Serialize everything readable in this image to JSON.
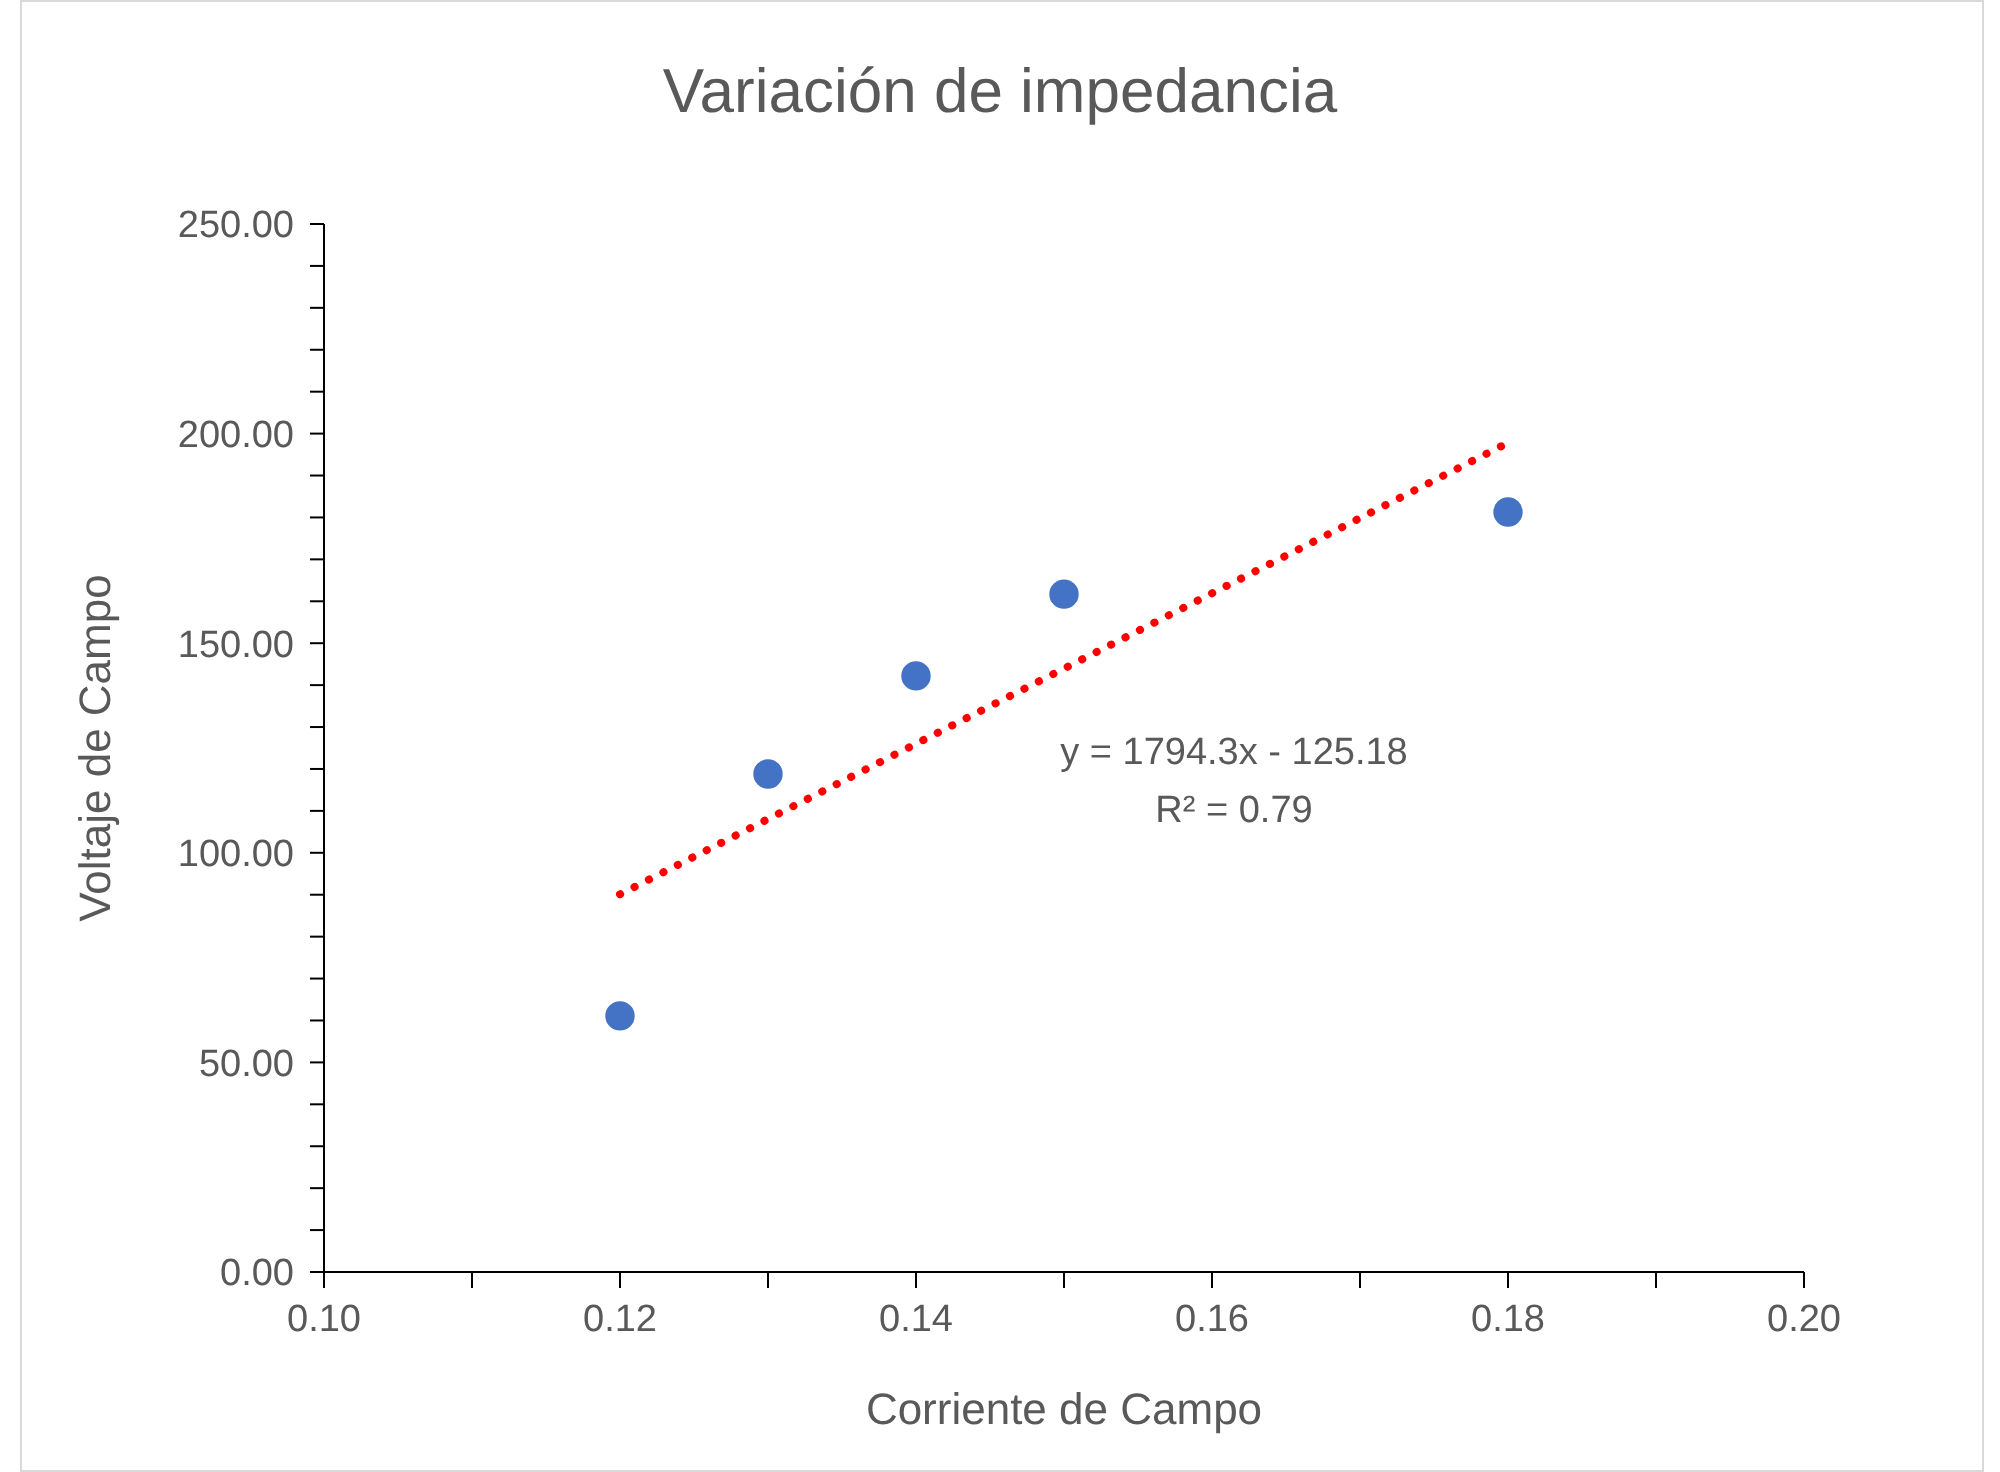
{
  "chart_data": {
    "type": "scatter",
    "title": "Variación de impedancia",
    "xlabel": "Corriente de Campo",
    "ylabel": "Voltaje de Campo",
    "xlim": [
      0.1,
      0.2
    ],
    "xticks": [
      {
        "value": 0.1,
        "label": "0.10"
      },
      {
        "value": 0.11,
        "label": null
      },
      0.12,
      {
        "value": 0.13,
        "label": null
      },
      0.14,
      {
        "value": 0.15,
        "label": null
      },
      0.16,
      {
        "value": 0.17,
        "label": null
      },
      0.18,
      {
        "value": 0.19,
        "label": null
      },
      {
        "value": 0.2,
        "label": "0.20"
      }
    ],
    "ylim": [
      0,
      250
    ],
    "yticks": [
      {
        "value": 0,
        "label": "0.00"
      },
      {
        "value": 10,
        "label": null
      },
      {
        "value": 20,
        "label": null
      },
      {
        "value": 30,
        "label": null
      },
      {
        "value": 40,
        "label": null
      },
      {
        "value": 50,
        "label": "50.00"
      },
      {
        "value": 60,
        "label": null
      },
      {
        "value": 70,
        "label": null
      },
      {
        "value": 80,
        "label": null
      },
      {
        "value": 90,
        "label": null
      },
      {
        "value": 100,
        "label": "100.00"
      },
      {
        "value": 110,
        "label": null
      },
      {
        "value": 120,
        "label": null
      },
      {
        "value": 130,
        "label": null
      },
      {
        "value": 140,
        "label": null
      },
      {
        "value": 150,
        "label": "150.00"
      },
      {
        "value": 160,
        "label": null
      },
      {
        "value": 170,
        "label": null
      },
      {
        "value": 180,
        "label": null
      },
      {
        "value": 190,
        "label": null
      },
      {
        "value": 200,
        "label": "200.00"
      },
      {
        "value": 210,
        "label": null
      },
      {
        "value": 220,
        "label": null
      },
      {
        "value": 230,
        "label": null
      },
      {
        "value": 240,
        "label": null
      },
      {
        "value": 250,
        "label": "250.00"
      }
    ],
    "series": [
      {
        "color": "#4472c4",
        "marker": "circle",
        "x": [
          0.12,
          0.13,
          0.14,
          0.15,
          0.18
        ],
        "values": [
          61.1,
          118.8,
          142.2,
          161.7,
          181.3
        ]
      },
      {
        "type": "line",
        "color": "#ff0000",
        "marker": "none",
        "line_style": "dotted",
        "x": [
          0.12,
          0.18
        ],
        "values": [
          90.1,
          197.8
        ]
      }
    ],
    "annotations": [
      "y = 1794.3x - 125.18",
      "R² = 0.79"
    ],
    "grid": false
  }
}
